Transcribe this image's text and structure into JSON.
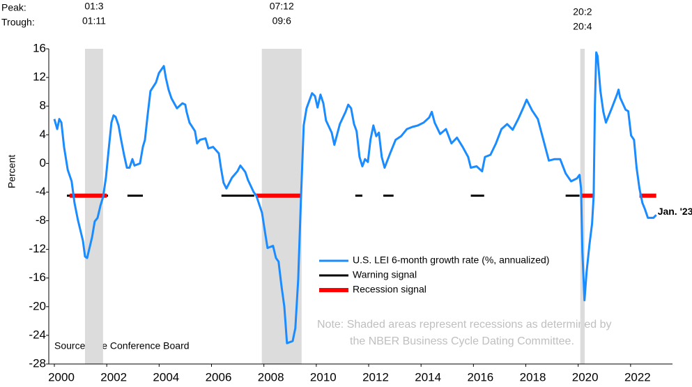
{
  "chart_data": {
    "type": "line",
    "ylabel": "Percent",
    "peak_label": "Peak:",
    "trough_label": "Trough:",
    "source": "Source: The Conference Board",
    "note": [
      "Note: Shaded areas represent recessions as determined by",
      "the NBER Business Cycle Dating Committee."
    ],
    "end_annotation": "Jan. '23",
    "xlim": [
      2000,
      2023.6
    ],
    "xticks": [
      2000,
      2002,
      2004,
      2006,
      2008,
      2010,
      2012,
      2014,
      2016,
      2018,
      2020,
      2022
    ],
    "ylim": [
      -28,
      16
    ],
    "yticks": [
      -28,
      -24,
      -20,
      -16,
      -12,
      -8,
      -4,
      0,
      4,
      8,
      12,
      16
    ],
    "recessions": [
      {
        "peak": "01:3",
        "trough": "01:11",
        "start": 2001.17,
        "end": 2001.86
      },
      {
        "peak": "07:12",
        "trough": "09:6",
        "start": 2007.92,
        "end": 2009.44
      },
      {
        "peak": "20:2",
        "trough": "20:4",
        "start": 2020.08,
        "end": 2020.25
      }
    ],
    "x": [
      2000.0,
      2000.11,
      2000.19,
      2000.27,
      2000.37,
      2000.51,
      2000.66,
      2000.77,
      2000.9,
      2001.09,
      2001.17,
      2001.25,
      2001.44,
      2001.54,
      2001.65,
      2001.76,
      2001.86,
      2001.97,
      2002.07,
      2002.18,
      2002.26,
      2002.34,
      2002.45,
      2002.55,
      2002.66,
      2002.77,
      2002.87,
      2002.98,
      2003.06,
      2003.27,
      2003.38,
      2003.46,
      2003.56,
      2003.67,
      2003.88,
      2003.99,
      2004.18,
      2004.26,
      2004.36,
      2004.47,
      2004.68,
      2004.89,
      2005.0,
      2005.05,
      2005.16,
      2005.37,
      2005.45,
      2005.56,
      2005.77,
      2005.88,
      2006.06,
      2006.28,
      2006.36,
      2006.46,
      2006.57,
      2006.78,
      2006.99,
      2007.1,
      2007.29,
      2007.39,
      2007.61,
      2007.71,
      2007.93,
      2008.03,
      2008.14,
      2008.35,
      2008.46,
      2008.56,
      2008.67,
      2008.78,
      2008.88,
      2009.1,
      2009.2,
      2009.31,
      2009.41,
      2009.52,
      2009.63,
      2009.84,
      2009.95,
      2010.05,
      2010.16,
      2010.27,
      2010.37,
      2010.59,
      2010.69,
      2010.9,
      2011.12,
      2011.22,
      2011.33,
      2011.44,
      2011.54,
      2011.65,
      2011.76,
      2011.86,
      2011.97,
      2012.07,
      2012.18,
      2012.29,
      2012.39,
      2012.5,
      2012.61,
      2012.82,
      2013.03,
      2013.24,
      2013.46,
      2013.67,
      2013.88,
      2014.1,
      2014.31,
      2014.41,
      2014.52,
      2014.73,
      2014.95,
      2015.16,
      2015.37,
      2015.59,
      2015.8,
      2015.9,
      2016.12,
      2016.33,
      2016.44,
      2016.65,
      2016.86,
      2017.07,
      2017.29,
      2017.5,
      2017.71,
      2017.93,
      2018.03,
      2018.24,
      2018.46,
      2018.67,
      2018.88,
      2019.1,
      2019.31,
      2019.52,
      2019.73,
      2019.95,
      2020.05,
      2020.11,
      2020.16,
      2020.24,
      2020.32,
      2020.43,
      2020.53,
      2020.59,
      2020.64,
      2020.69,
      2020.74,
      2020.85,
      2020.96,
      2021.06,
      2021.28,
      2021.49,
      2021.54,
      2021.6,
      2021.81,
      2021.91,
      2022.02,
      2022.13,
      2022.23,
      2022.34,
      2022.45,
      2022.55,
      2022.66,
      2022.87,
      2022.98
    ],
    "series": [
      {
        "name": "U.S. LEI 6-month growth rate (%, annualized)",
        "color": "#1a8cff",
        "values": [
          6.2,
          4.8,
          6.2,
          5.7,
          2.3,
          -0.9,
          -2.5,
          -5.5,
          -7.9,
          -10.8,
          -13.0,
          -13.2,
          -10.3,
          -8.1,
          -7.6,
          -5.9,
          -4.7,
          -2.0,
          1.8,
          5.7,
          6.7,
          6.5,
          5.3,
          3.3,
          1.2,
          -0.6,
          -0.6,
          0.6,
          -0.3,
          0.0,
          2.3,
          3.3,
          6.7,
          10.1,
          11.3,
          12.6,
          13.6,
          11.9,
          10.3,
          9.1,
          7.7,
          8.4,
          8.2,
          7.2,
          5.7,
          4.5,
          2.8,
          3.3,
          3.5,
          2.1,
          2.3,
          1.4,
          -0.6,
          -2.7,
          -3.5,
          -2.0,
          -1.1,
          -0.3,
          -1.2,
          -2.3,
          -4.0,
          -4.5,
          -6.9,
          -9.3,
          -11.8,
          -11.5,
          -13.2,
          -13.7,
          -17.1,
          -20.0,
          -25.1,
          -24.8,
          -23.0,
          -16.2,
          -5.4,
          5.3,
          7.7,
          9.8,
          9.4,
          7.8,
          9.6,
          8.4,
          6.0,
          4.3,
          2.6,
          5.5,
          7.2,
          8.2,
          7.7,
          5.5,
          4.5,
          0.9,
          -0.4,
          0.6,
          0.2,
          3.3,
          5.3,
          3.8,
          4.3,
          0.9,
          -0.6,
          1.4,
          3.3,
          3.8,
          4.8,
          5.1,
          5.3,
          5.7,
          6.4,
          7.2,
          5.7,
          4.1,
          4.8,
          2.8,
          3.6,
          2.3,
          0.9,
          -0.6,
          -0.4,
          -1.1,
          0.9,
          1.2,
          2.8,
          4.8,
          5.5,
          4.7,
          6.2,
          8.0,
          8.9,
          7.4,
          6.2,
          3.3,
          0.4,
          0.6,
          0.6,
          -1.4,
          -2.5,
          -2.1,
          -1.6,
          -3.5,
          -12.3,
          -19.1,
          -15.2,
          -11.3,
          -8.4,
          -4.5,
          8.2,
          15.5,
          15.0,
          10.1,
          7.2,
          5.7,
          7.7,
          9.7,
          10.3,
          9.2,
          7.5,
          7.3,
          3.9,
          3.3,
          -0.6,
          -3.5,
          -5.5,
          -6.4,
          -7.6,
          -7.6,
          -7.2
        ]
      }
    ],
    "warning_signal": {
      "name": "Warning signal",
      "color": "#000000",
      "level": -4.5,
      "spans": [
        [
          2000.48,
          2002.05
        ],
        [
          2002.79,
          2003.38
        ],
        [
          2006.38,
          2007.63
        ],
        [
          2011.49,
          2011.76
        ],
        [
          2012.56,
          2012.95
        ],
        [
          2015.9,
          2016.41
        ],
        [
          2019.52,
          2020.05
        ]
      ]
    },
    "recession_signal": {
      "name": "Recession signal",
      "color": "#ff0000",
      "level": -4.5,
      "spans": [
        [
          2000.59,
          2002.0
        ],
        [
          2007.69,
          2009.44
        ],
        [
          2020.08,
          2020.59
        ],
        [
          2022.34,
          2022.98
        ]
      ]
    }
  }
}
